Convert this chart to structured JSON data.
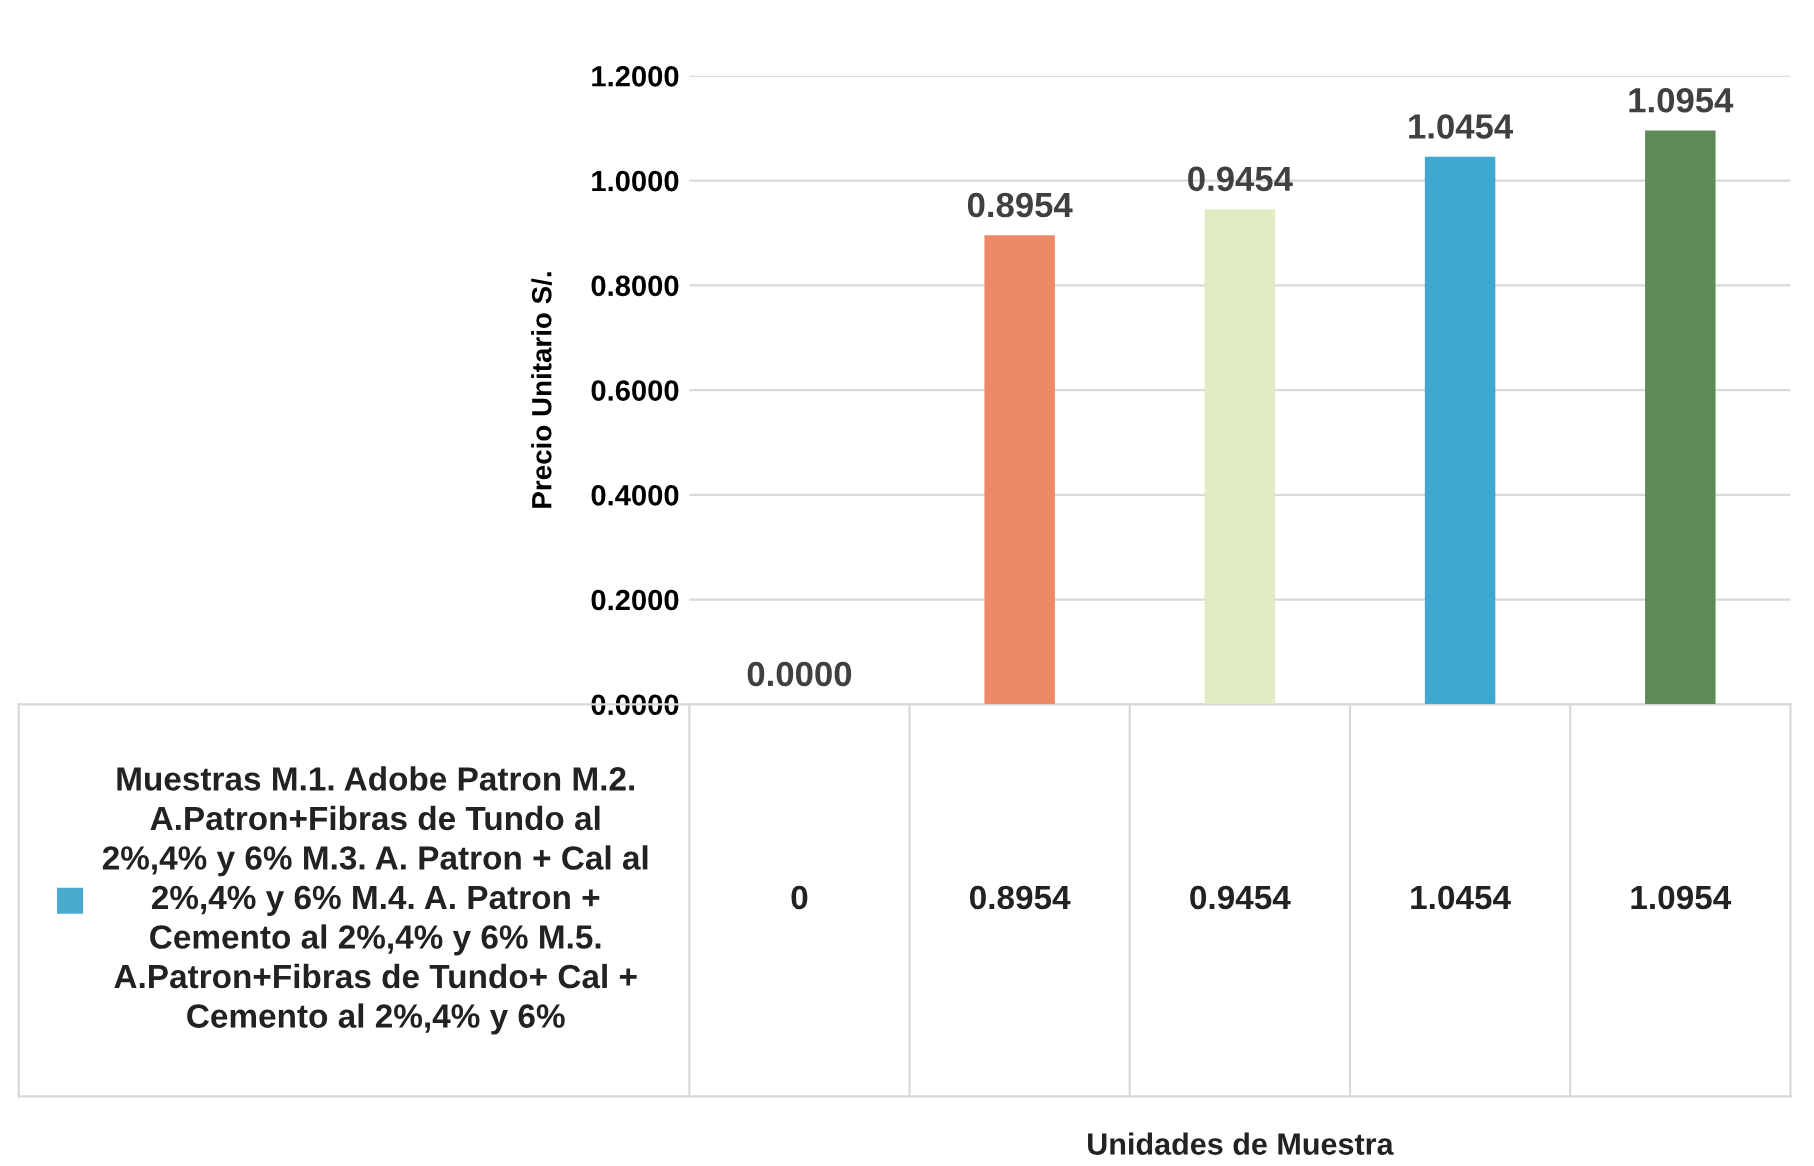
{
  "chart_data": {
    "type": "bar",
    "ylabel": "Precio Unitario S/.",
    "categories": [
      null,
      null,
      null,
      null,
      null
    ],
    "series": [
      {
        "name": "Muestras M.1. Adobe Patron M.2. A.Patron+Fibras de Tundo al 2%,4% y 6% M.3. A. Patron + Cal al 2%,4% y 6% M.4. A. Patron + Cemento al 2%,4% y 6% M.5. A.Patron+Fibras de Tundo+ Cal + Cemento al 2%,4% y 6%",
        "color": "#4aaccc",
        "colors": [
          "#4aaccc",
          "#ec8a68",
          "#e2ecc2",
          "#3ea8d0",
          "#5e8a58"
        ],
        "values": [
          0,
          0.8954,
          0.9454,
          1.0454,
          1.0954
        ],
        "value_labels": [
          "0.0000",
          "0.8954",
          "0.9454",
          "1.0454",
          "1.0954"
        ]
      }
    ],
    "annotations": [
      "0",
      "0.8954",
      "0.9454",
      "1.0454",
      "1.0954",
      "Unidades de Muestra"
    ],
    "ylim": [
      0,
      1.2
    ],
    "yticks": [
      {
        "value": 0,
        "label": "0.0000"
      },
      {
        "value": 0.2,
        "label": "0.2000"
      },
      {
        "value": 0.4,
        "label": "0.4000"
      },
      {
        "value": 0.6,
        "label": "0.6000"
      },
      {
        "value": 0.8,
        "label": "0.8000"
      },
      {
        "value": 1.0,
        "label": "1.0000"
      },
      {
        "value": 1.2,
        "label": "1.2000"
      }
    ],
    "grid": "y",
    "legend": "bottom left"
  }
}
